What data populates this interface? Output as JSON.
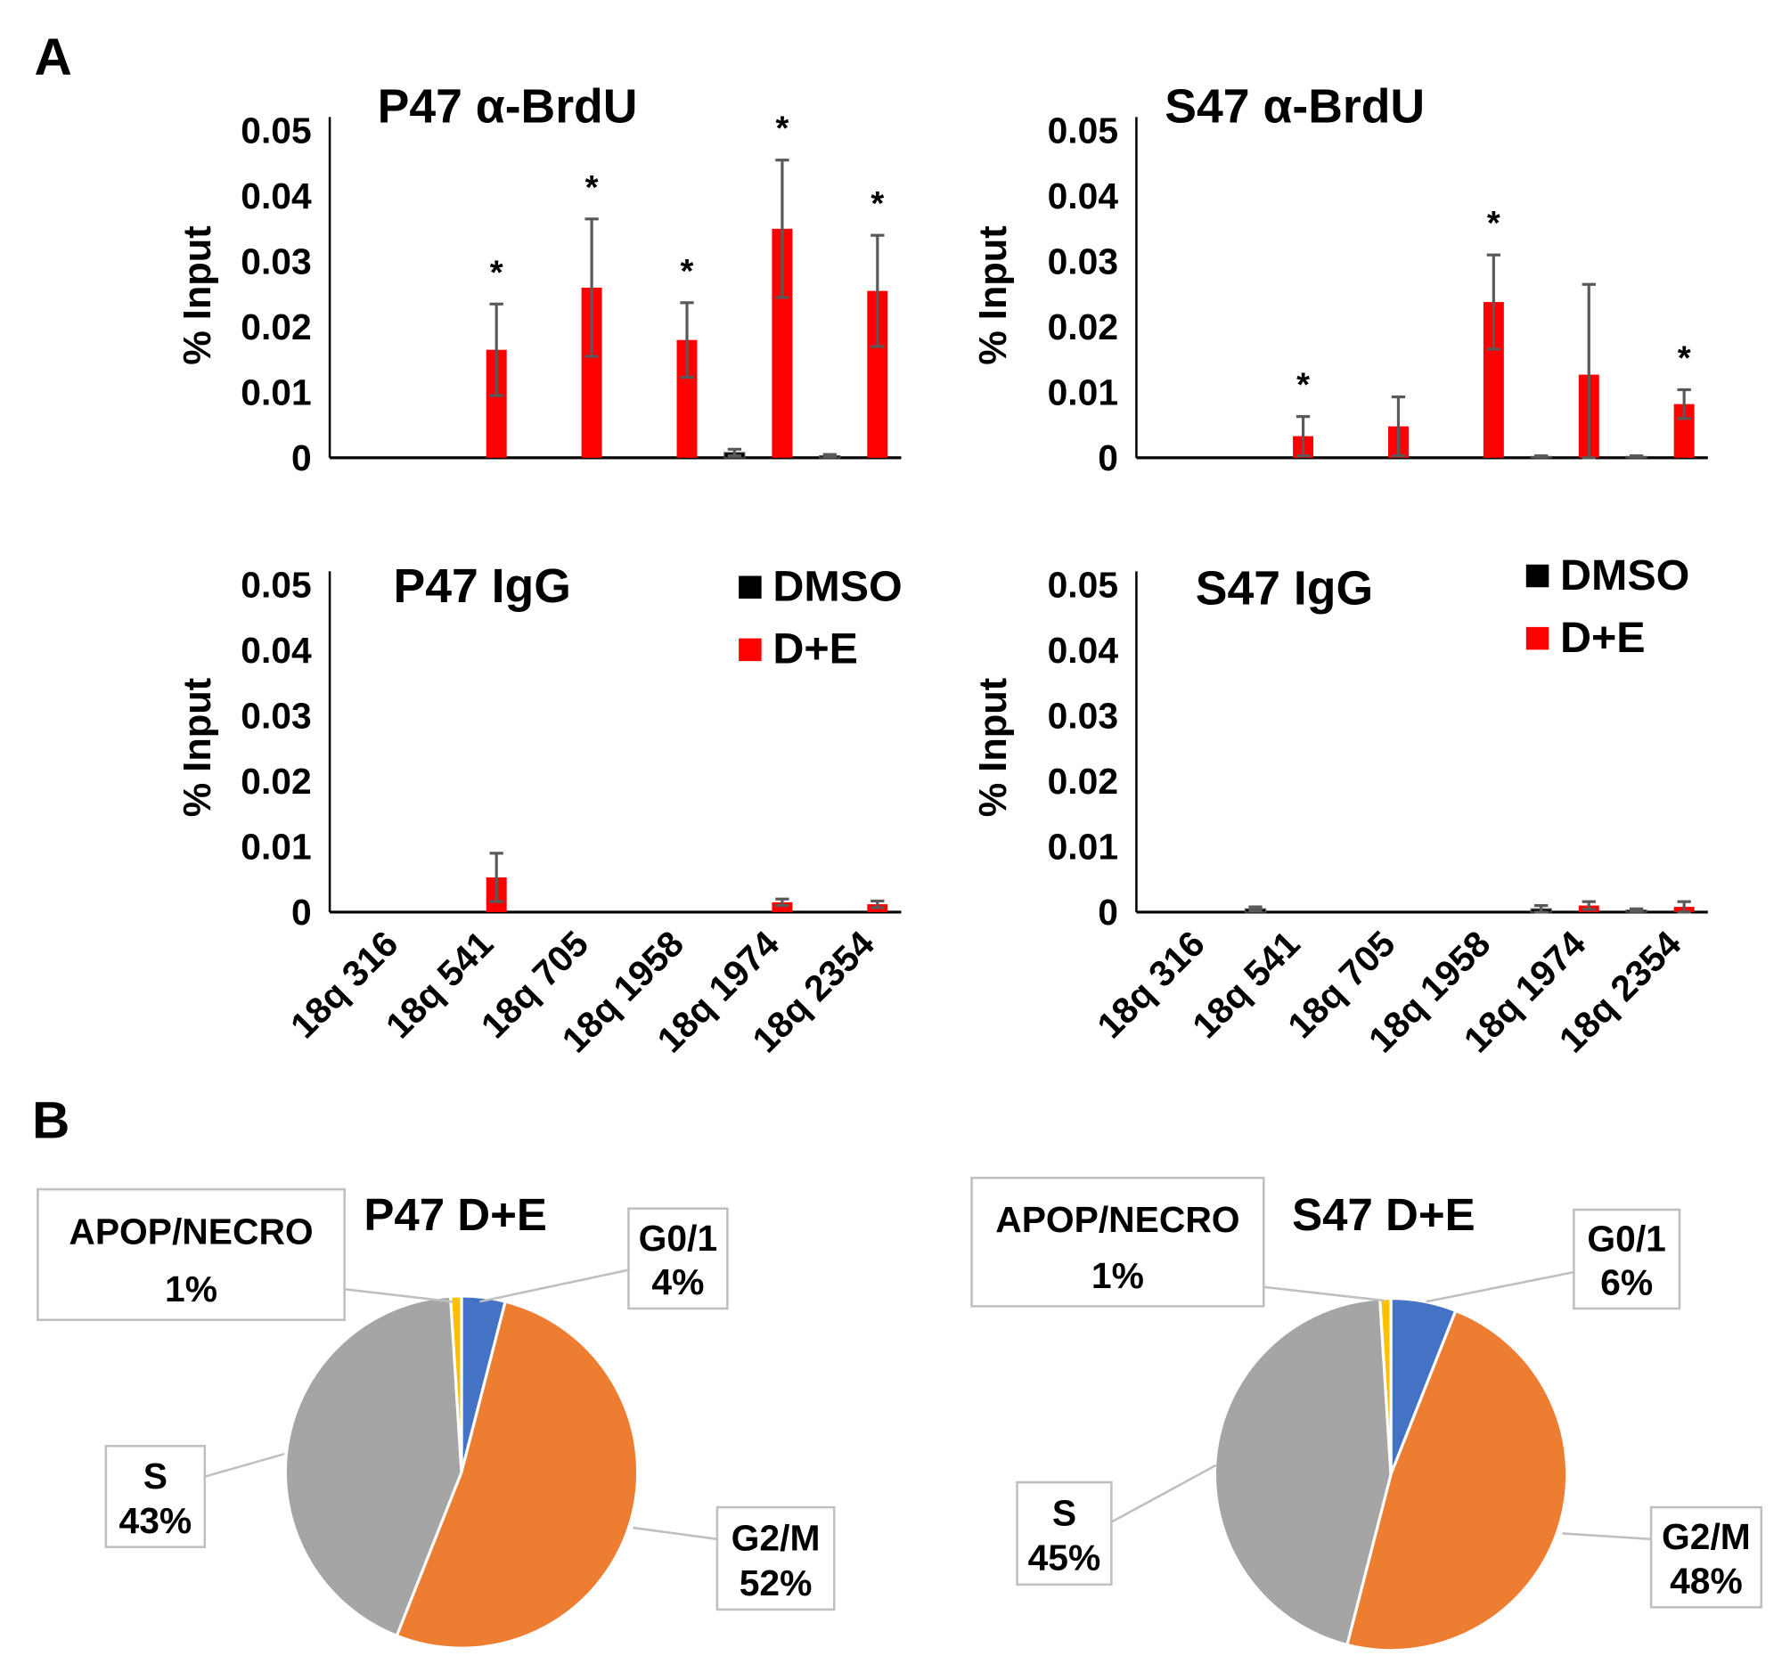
{
  "panel_labels": [
    "A",
    "B"
  ],
  "colors": {
    "DMSO": "#000000",
    "D+E": "#ff0000",
    "error_bar": "#595959",
    "G0/1": "#4472c4",
    "G2/M": "#ed7d31",
    "S": "#a5a5a5",
    "APOP/NECRO": "#ffc000"
  },
  "chart_data": [
    {
      "type": "bar",
      "title": "P47 α-BrdU",
      "ylabel": "% Input",
      "ylim": [
        0,
        0.05
      ],
      "yticks": [
        "0",
        "0.01",
        "0.02",
        "0.03",
        "0.04",
        "0.05"
      ],
      "categories": [
        "18q 316",
        "18q 541",
        "18q 705",
        "18q 1958",
        "18q 1974",
        "18q 2354"
      ],
      "series": [
        {
          "name": "DMSO",
          "values": [
            0,
            0,
            0,
            0,
            0.0008,
            0.0003
          ],
          "errors": [
            0,
            0,
            0,
            0,
            0.0005,
            0.0002
          ]
        },
        {
          "name": "D+E",
          "values": [
            0,
            0.0165,
            0.026,
            0.018,
            0.035,
            0.0255
          ],
          "errors": [
            0,
            0.007,
            0.0105,
            0.0057,
            0.0105,
            0.0085
          ]
        }
      ],
      "significance": [
        "",
        "*",
        "*",
        "*",
        "*",
        "*"
      ]
    },
    {
      "type": "bar",
      "title": "S47 α-BrdU",
      "ylabel": "% Input",
      "ylim": [
        0,
        0.05
      ],
      "yticks": [
        "0",
        "0.01",
        "0.02",
        "0.03",
        "0.04",
        "0.05"
      ],
      "categories": [
        "18q 316",
        "18q 541",
        "18q 705",
        "18q 1958",
        "18q 1974",
        "18q 2354"
      ],
      "series": [
        {
          "name": "DMSO",
          "values": [
            0,
            0,
            0,
            0,
            0.0002,
            0.0002
          ],
          "errors": [
            0,
            0,
            0,
            0,
            0.0001,
            0.0001
          ]
        },
        {
          "name": "D+E",
          "values": [
            0,
            0.0033,
            0.0048,
            0.0238,
            0.0127,
            0.0082
          ],
          "errors": [
            0,
            0.003,
            0.0045,
            0.0072,
            0.0138,
            0.0022
          ]
        }
      ],
      "significance": [
        "",
        "*",
        "",
        "*",
        "",
        "*"
      ]
    },
    {
      "type": "bar",
      "title": "P47 IgG",
      "ylabel": "% Input",
      "ylim": [
        0,
        0.05
      ],
      "yticks": [
        "0",
        "0.01",
        "0.02",
        "0.03",
        "0.04",
        "0.05"
      ],
      "categories": [
        "18q 316",
        "18q 541",
        "18q 705",
        "18q 1958",
        "18q 1974",
        "18q 2354"
      ],
      "legend": [
        "DMSO",
        "D+E"
      ],
      "series": [
        {
          "name": "DMSO",
          "values": [
            0,
            0,
            0,
            0,
            0,
            0
          ],
          "errors": [
            0,
            0,
            0,
            0,
            0,
            0
          ]
        },
        {
          "name": "D+E",
          "values": [
            0,
            0.0053,
            0,
            0,
            0.0015,
            0.0012
          ],
          "errors": [
            0,
            0.0037,
            0,
            0,
            0.0005,
            0.0005
          ]
        }
      ],
      "significance": [
        "",
        "",
        "",
        "",
        "",
        ""
      ]
    },
    {
      "type": "bar",
      "title": "S47 IgG",
      "ylabel": "% Input",
      "ylim": [
        0,
        0.05
      ],
      "yticks": [
        "0",
        "0.01",
        "0.02",
        "0.03",
        "0.04",
        "0.05"
      ],
      "categories": [
        "18q 316",
        "18q 541",
        "18q 705",
        "18q 1958",
        "18q 1974",
        "18q 2354"
      ],
      "legend": [
        "DMSO",
        "D+E"
      ],
      "series": [
        {
          "name": "DMSO",
          "values": [
            0,
            0.0005,
            0,
            0,
            0.0005,
            0.0003
          ],
          "errors": [
            0,
            0.0003,
            0,
            0,
            0.0005,
            0.0002
          ]
        },
        {
          "name": "D+E",
          "values": [
            0,
            0,
            0,
            0,
            0.001,
            0.0008
          ],
          "errors": [
            0,
            0,
            0,
            0,
            0.0006,
            0.0008
          ]
        }
      ],
      "significance": [
        "",
        "",
        "",
        "",
        "",
        ""
      ]
    },
    {
      "type": "pie",
      "title": "P47 D+E",
      "slices": [
        {
          "label": "G0/1",
          "value": 4,
          "text": "4%"
        },
        {
          "label": "G2/M",
          "value": 52,
          "text": "52%"
        },
        {
          "label": "S",
          "value": 43,
          "text": "43%"
        },
        {
          "label": "APOP/NECRO",
          "value": 1,
          "text": "1%"
        }
      ]
    },
    {
      "type": "pie",
      "title": "S47 D+E",
      "slices": [
        {
          "label": "G0/1",
          "value": 6,
          "text": "6%"
        },
        {
          "label": "G2/M",
          "value": 48,
          "text": "48%"
        },
        {
          "label": "S",
          "value": 45,
          "text": "45%"
        },
        {
          "label": "APOP/NECRO",
          "value": 1,
          "text": "1%"
        }
      ]
    }
  ]
}
